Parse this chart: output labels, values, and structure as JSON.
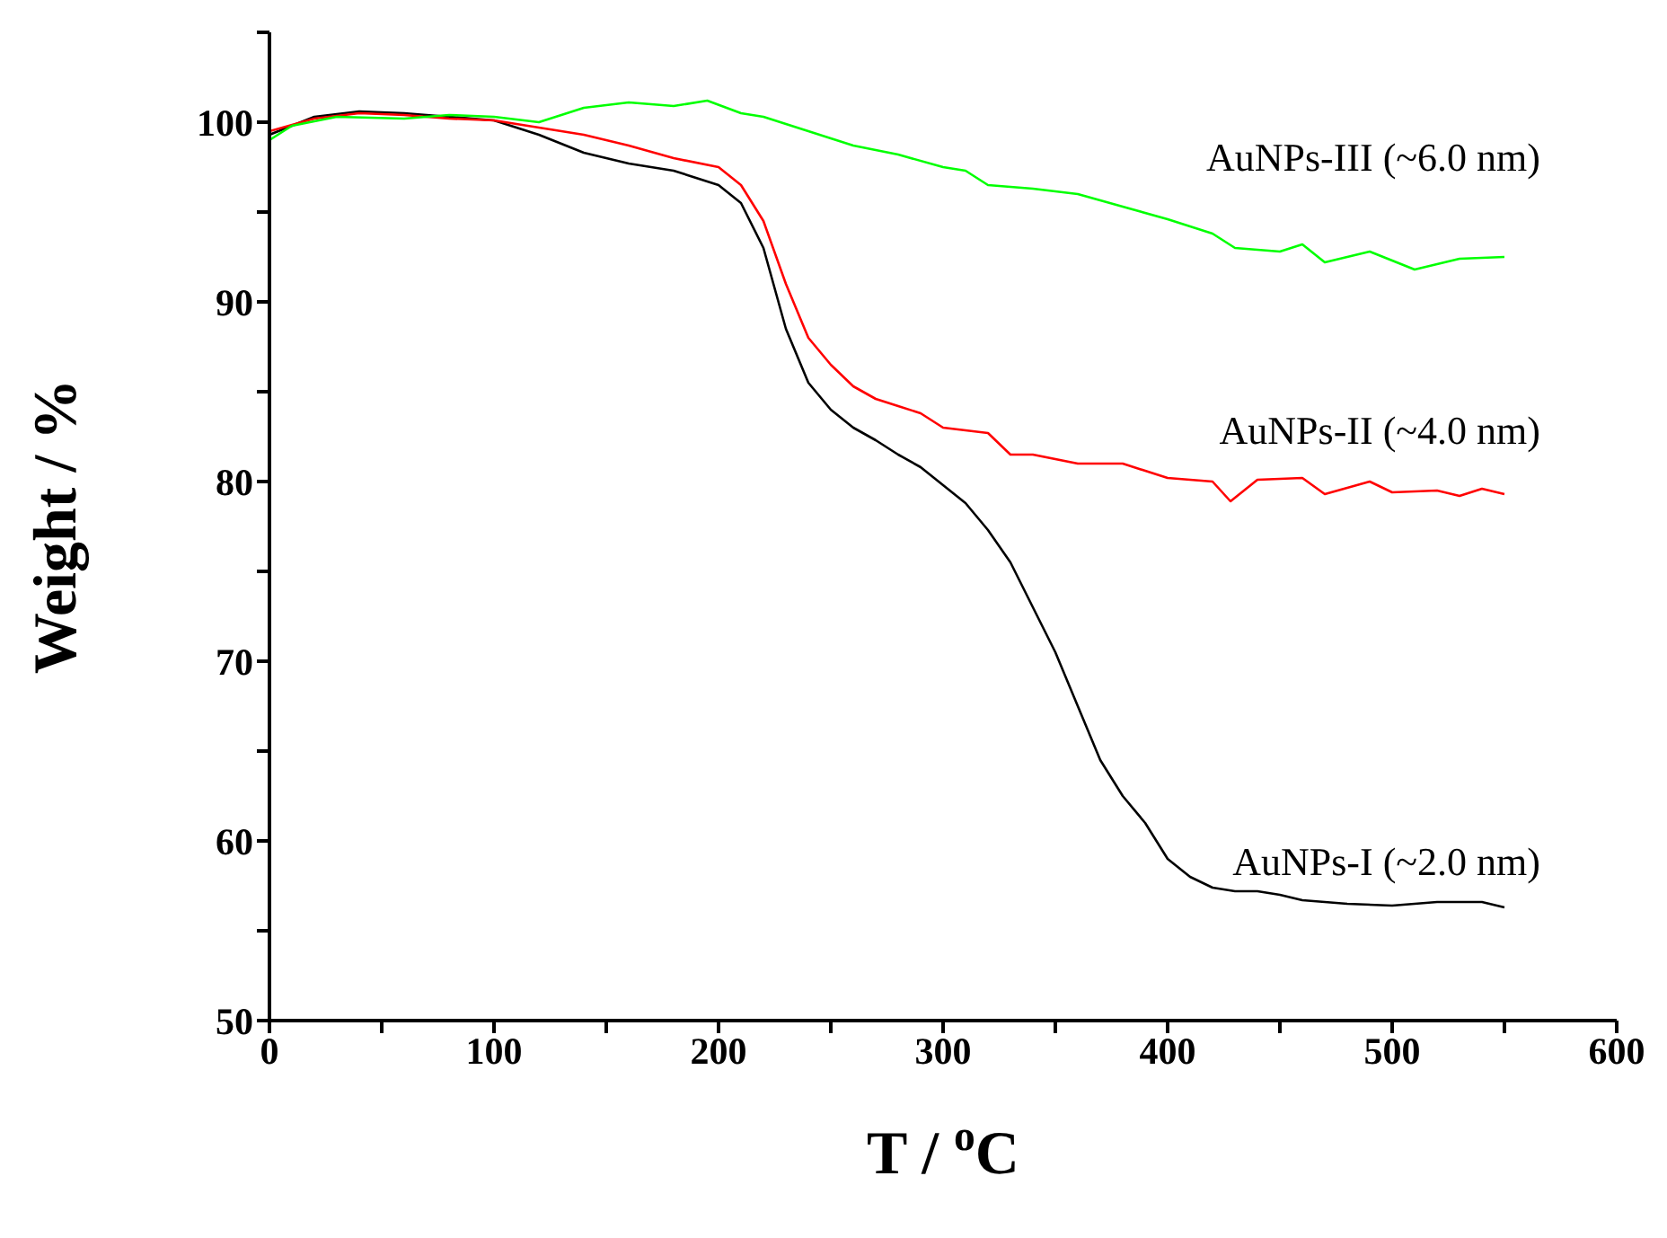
{
  "chart_data": {
    "type": "line",
    "xlabel": "T / $^{o}$C",
    "ylabel": "Weight / %",
    "xlim": [
      0,
      600
    ],
    "xticks": [
      0,
      {
        "value": 50,
        "label": null
      },
      100,
      {
        "value": 150,
        "label": null
      },
      200,
      {
        "value": 250,
        "label": null
      },
      300,
      {
        "value": 350,
        "label": null
      },
      400,
      {
        "value": 450,
        "label": null
      },
      500,
      {
        "value": 550,
        "label": null
      },
      600
    ],
    "ylim": [
      50,
      105
    ],
    "yticks": [
      50,
      {
        "value": 55,
        "label": null
      },
      60,
      {
        "value": 65,
        "label": null
      },
      70,
      {
        "value": 75,
        "label": null
      },
      80,
      {
        "value": 85,
        "label": null
      },
      90,
      {
        "value": 95,
        "label": null
      },
      100,
      {
        "value": 105,
        "label": null
      }
    ],
    "series": [
      {
        "name": "AuNPs-I (~2.0 nm)",
        "color": "#000000",
        "x": [
          0,
          20,
          40,
          60,
          80,
          100,
          120,
          140,
          160,
          180,
          200,
          210,
          220,
          230,
          240,
          250,
          260,
          270,
          280,
          290,
          300,
          310,
          320,
          330,
          340,
          350,
          360,
          370,
          380,
          390,
          400,
          410,
          420,
          430,
          440,
          450,
          460,
          480,
          500,
          520,
          540,
          550
        ],
        "values": [
          99.3,
          100.3,
          100.6,
          100.5,
          100.3,
          100.1,
          99.3,
          98.3,
          97.7,
          97.3,
          96.5,
          95.5,
          93.0,
          88.5,
          85.5,
          84.0,
          83.0,
          82.3,
          81.5,
          80.8,
          79.8,
          78.8,
          77.3,
          75.5,
          73.0,
          70.5,
          67.5,
          64.5,
          62.5,
          61.0,
          59.0,
          58.0,
          57.4,
          57.2,
          57.2,
          57.0,
          56.7,
          56.5,
          56.4,
          56.6,
          56.6,
          56.3
        ]
      },
      {
        "name": "AuNPs-II (~4.0 nm)",
        "color": "#ff0000",
        "x": [
          0,
          20,
          40,
          60,
          80,
          100,
          120,
          140,
          160,
          180,
          200,
          210,
          220,
          230,
          240,
          250,
          260,
          270,
          280,
          290,
          300,
          320,
          330,
          340,
          360,
          380,
          400,
          420,
          428,
          440,
          460,
          470,
          490,
          500,
          520,
          530,
          540,
          550
        ],
        "values": [
          99.5,
          100.2,
          100.5,
          100.4,
          100.2,
          100.1,
          99.7,
          99.3,
          98.7,
          98.0,
          97.5,
          96.5,
          94.5,
          91.0,
          88.0,
          86.5,
          85.3,
          84.6,
          84.2,
          83.8,
          83.0,
          82.7,
          81.5,
          81.5,
          81.0,
          81.0,
          80.2,
          80.0,
          78.9,
          80.1,
          80.2,
          79.3,
          80.0,
          79.4,
          79.5,
          79.2,
          79.6,
          79.3
        ]
      },
      {
        "name": "AuNPs-III (~6.0 nm)",
        "color": "#00ff00",
        "x": [
          0,
          10,
          30,
          60,
          80,
          100,
          120,
          140,
          160,
          180,
          195,
          210,
          220,
          240,
          260,
          280,
          300,
          310,
          320,
          340,
          360,
          380,
          400,
          420,
          430,
          450,
          460,
          470,
          490,
          510,
          530,
          550
        ],
        "values": [
          99.0,
          99.8,
          100.3,
          100.2,
          100.4,
          100.3,
          100.0,
          100.8,
          101.1,
          100.9,
          101.2,
          100.5,
          100.3,
          99.5,
          98.7,
          98.2,
          97.5,
          97.3,
          96.5,
          96.3,
          96.0,
          95.3,
          94.6,
          93.8,
          93.0,
          92.8,
          93.2,
          92.2,
          92.8,
          91.8,
          92.4,
          92.5
        ]
      }
    ]
  }
}
